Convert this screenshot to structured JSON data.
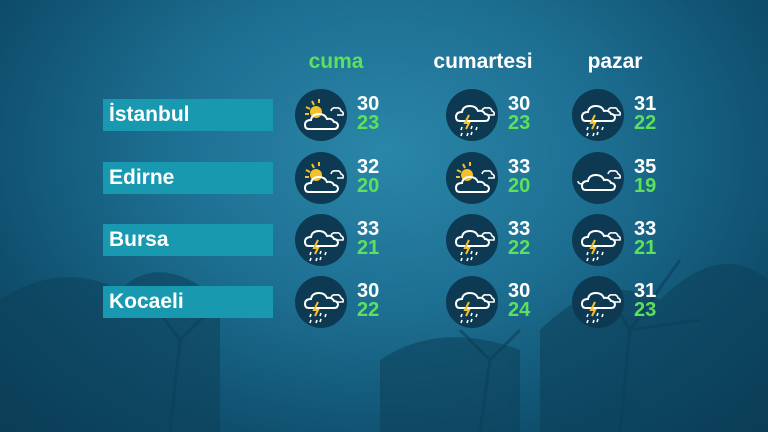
{
  "days": [
    {
      "label": "cuma",
      "active": true
    },
    {
      "label": "cumartesi",
      "active": false
    },
    {
      "label": "pazar",
      "active": false
    }
  ],
  "colors": {
    "label_bg": "#1899b0",
    "high": "#ffffff",
    "low": "#5de05d",
    "icon_bg": "#0d3a52",
    "sun": "#f5c02a"
  },
  "cities": [
    {
      "name": "İstanbul",
      "forecast": [
        {
          "icon": "partly-cloudy",
          "high": "30",
          "low": "23"
        },
        {
          "icon": "thunder-rain",
          "high": "30",
          "low": "23"
        },
        {
          "icon": "thunder-rain",
          "high": "31",
          "low": "22"
        }
      ]
    },
    {
      "name": "Edirne",
      "forecast": [
        {
          "icon": "partly-cloudy",
          "high": "32",
          "low": "20"
        },
        {
          "icon": "partly-cloudy",
          "high": "33",
          "low": "20"
        },
        {
          "icon": "cloudy",
          "high": "35",
          "low": "19"
        }
      ]
    },
    {
      "name": "Bursa",
      "forecast": [
        {
          "icon": "thunder-rain",
          "high": "33",
          "low": "21"
        },
        {
          "icon": "thunder-rain",
          "high": "33",
          "low": "22"
        },
        {
          "icon": "thunder-rain",
          "high": "33",
          "low": "21"
        }
      ]
    },
    {
      "name": "Kocaeli",
      "forecast": [
        {
          "icon": "thunder-rain",
          "high": "30",
          "low": "22"
        },
        {
          "icon": "thunder-rain",
          "high": "30",
          "low": "24"
        },
        {
          "icon": "thunder-rain",
          "high": "31",
          "low": "23"
        }
      ]
    }
  ]
}
